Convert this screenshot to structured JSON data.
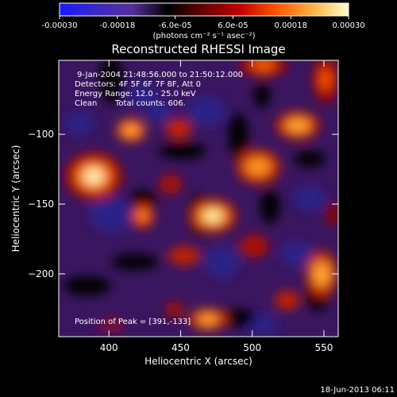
{
  "colorbar": {
    "ticks": [
      "-0.00030",
      "-0.00018",
      "-6.0e-05",
      "6.0e-05",
      "0.00018",
      "0.00030"
    ],
    "unit_label": "(photons cm⁻² s⁻¹ asec⁻²)",
    "colors": [
      "#1a1aff",
      "#3a28c8",
      "#56309a",
      "#000000",
      "#6a0000",
      "#c00000",
      "#ff5500",
      "#ffb040",
      "#ffffcc"
    ]
  },
  "title": "Reconstructed RHESSI Image",
  "info": {
    "time_range": "9-Jan-2004 21:48:56.000 to 21:50:12.000",
    "detectors": "Detectors: 4F 5F 6F 7F 8F, Att 0",
    "energy": "Energy Range: 12.0 - 25.0 keV",
    "clean": "Clean",
    "counts": "Total counts: 606."
  },
  "peak_label": "Position of Peak = [391,-133]",
  "axes": {
    "xlabel": "Heliocentric X (arcsec)",
    "ylabel": "Heliocentric Y (arcsec)",
    "xticks": [
      {
        "value": 400,
        "label": "400"
      },
      {
        "value": 450,
        "label": "450"
      },
      {
        "value": 500,
        "label": "500"
      },
      {
        "value": 550,
        "label": "550"
      }
    ],
    "yticks": [
      {
        "value": -100,
        "label": "−100"
      },
      {
        "value": -150,
        "label": "−150"
      },
      {
        "value": -200,
        "label": "−200"
      }
    ],
    "xlim": [
      365,
      560
    ],
    "ylim": [
      -245,
      -47
    ]
  },
  "footer_date": "18-Jun-2013 06:11"
}
